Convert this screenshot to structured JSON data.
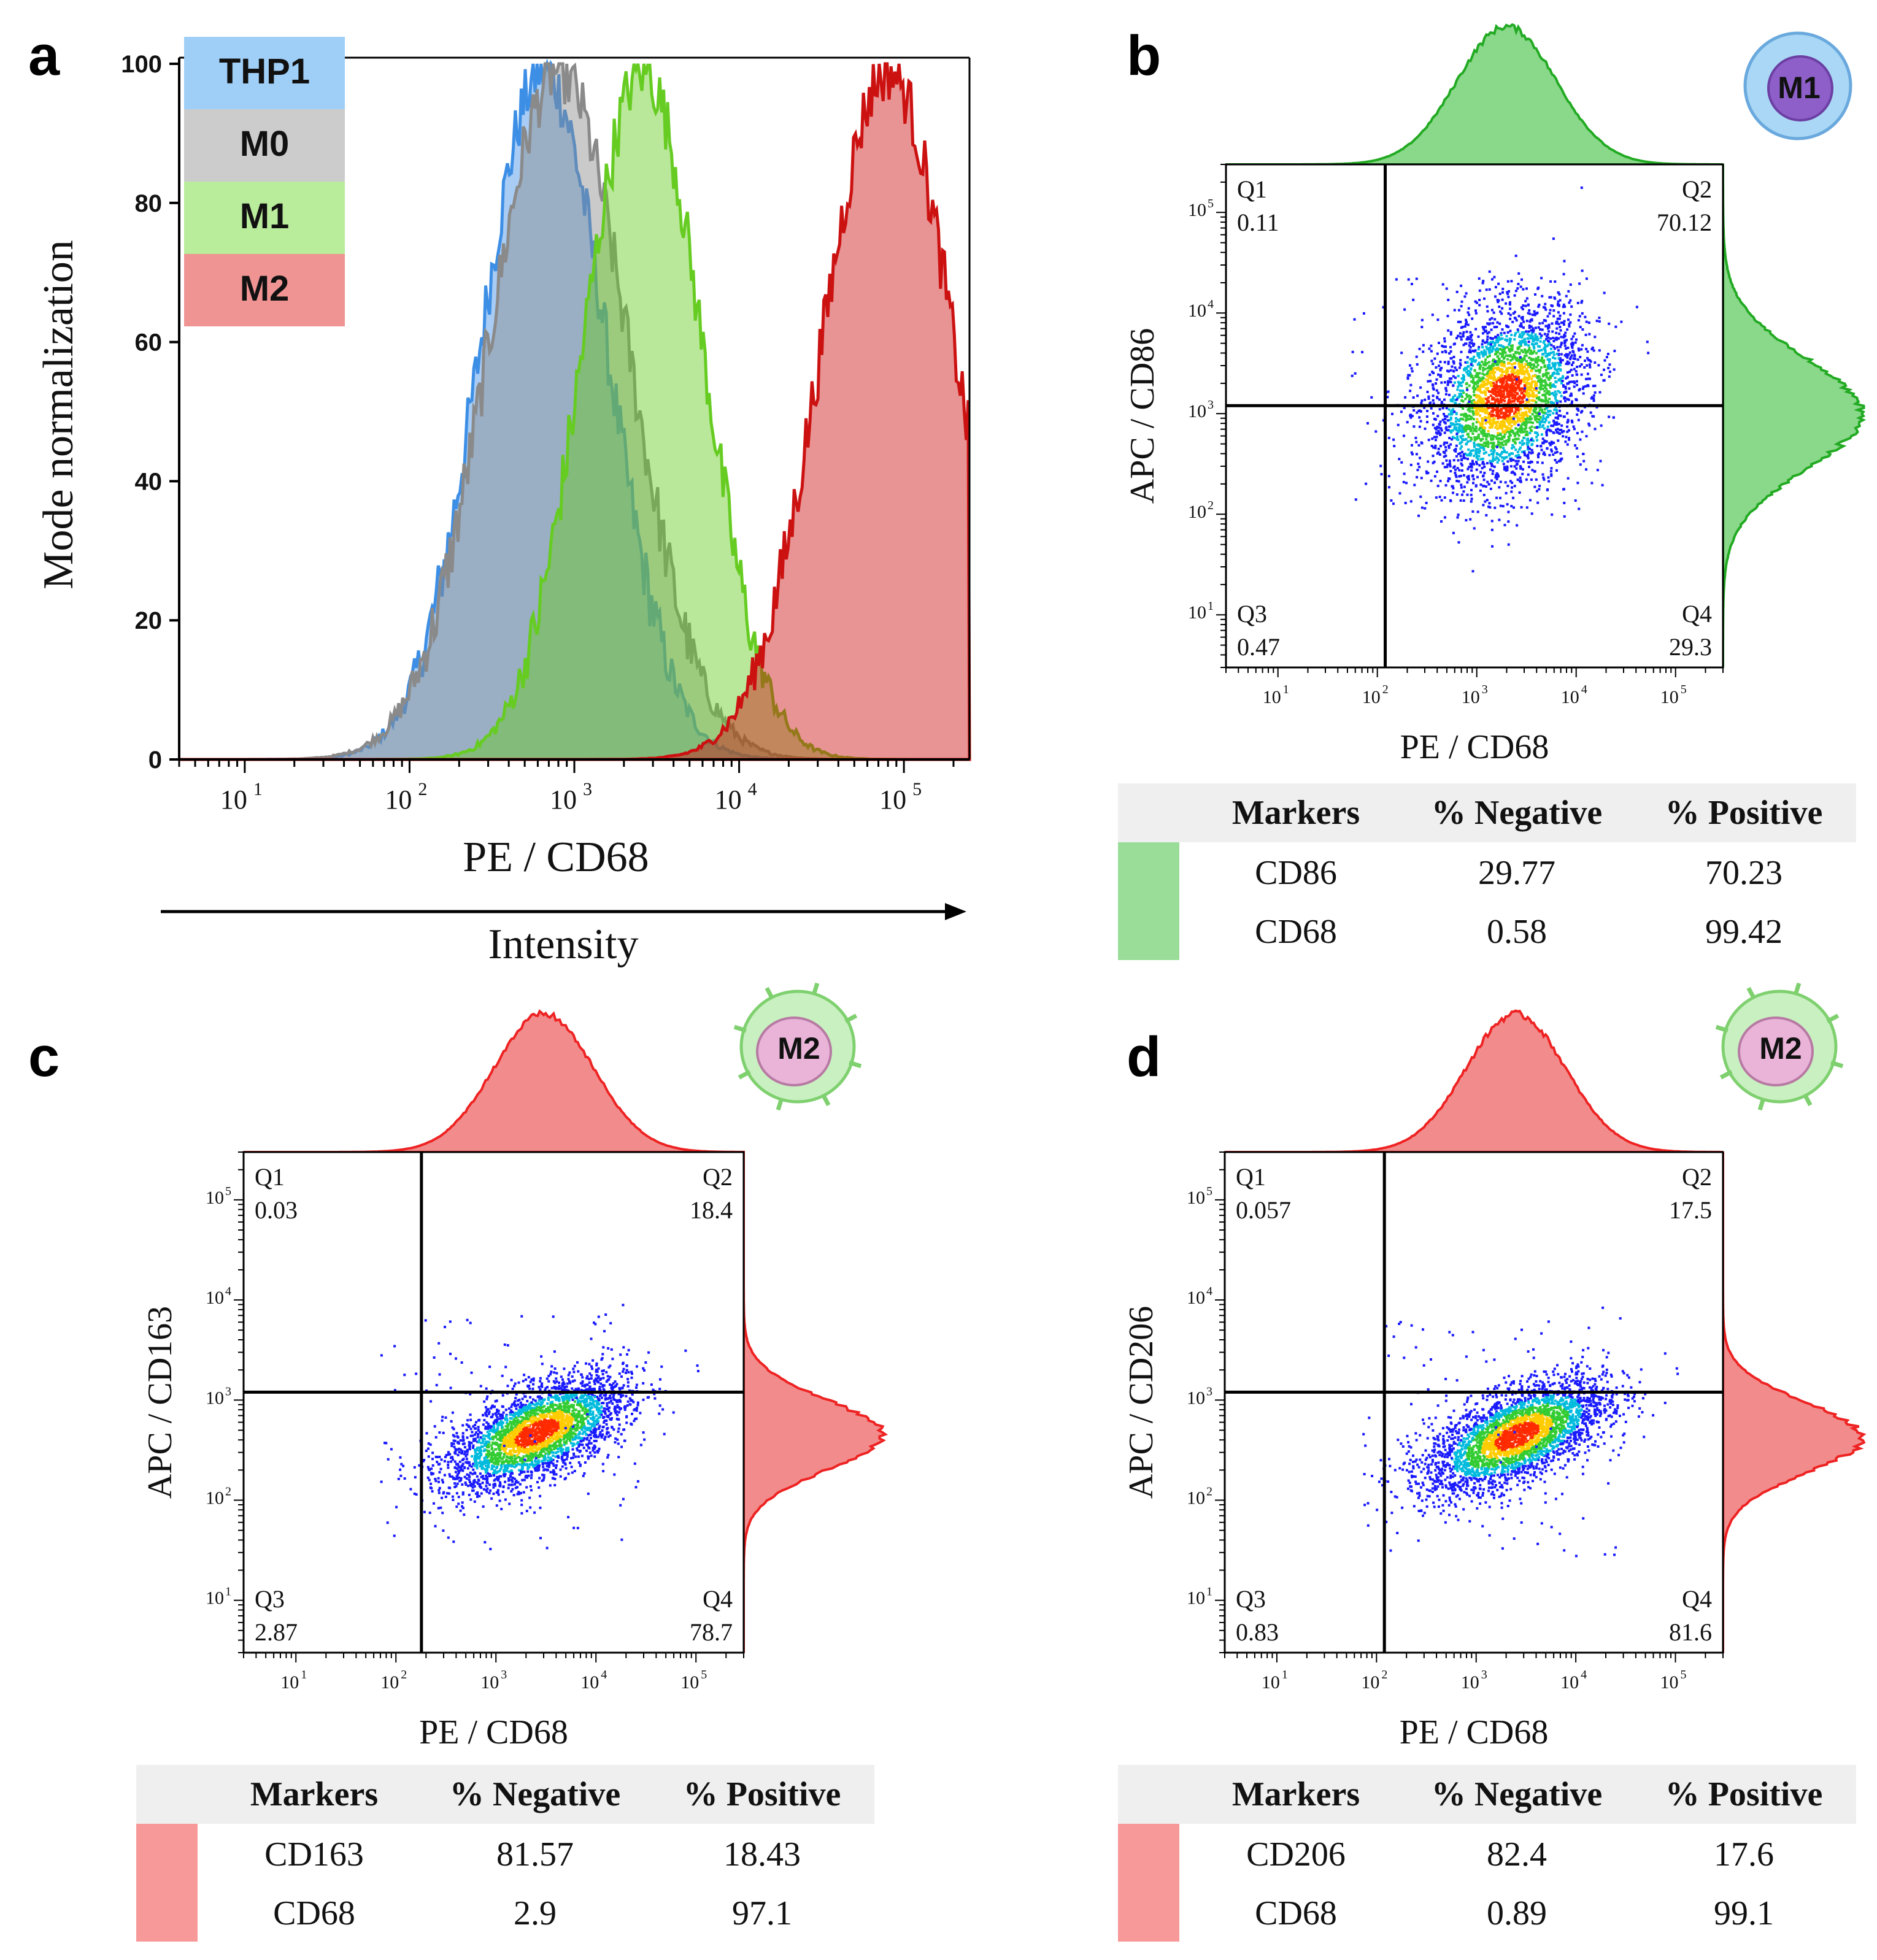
{
  "colors": {
    "THP1": "#3d8fe6",
    "M0": "#8a8a8a",
    "M1": "#66cc22",
    "M2": "#cc1111",
    "m1_marginal": "#22aa22",
    "m2_marginal": "#ee2222",
    "green_swatch": "#99dd99",
    "red_swatch": "#f89999"
  },
  "chart_data": [
    {
      "panel": "a",
      "type": "area",
      "xlabel": "PE / CD68",
      "ylabel": "Mode normalization",
      "arrow_label": "Intensity",
      "xscale": "log",
      "xlim": [
        4,
        250000
      ],
      "ylim": [
        0,
        100
      ],
      "x_ticks": [
        "10",
        "10",
        "10",
        "10",
        "10"
      ],
      "x_tick_exponents": [
        "1",
        "2",
        "3",
        "4",
        "5"
      ],
      "y_ticks": [
        "0",
        "20",
        "40",
        "60",
        "80",
        "100"
      ],
      "legend_position": "top-left",
      "series": [
        {
          "name": "THP1",
          "color_key": "THP1",
          "peak_x": 650,
          "sigma_log10": 0.38,
          "peak_y": 99
        },
        {
          "name": "M0",
          "color_key": "M0",
          "peak_x": 800,
          "sigma_log10": 0.42,
          "peak_y": 99
        },
        {
          "name": "M1",
          "color_key": "M1",
          "peak_x": 2600,
          "sigma_log10": 0.36,
          "peak_y": 99
        },
        {
          "name": "M2",
          "color_key": "M2",
          "peak_x": 80000,
          "sigma_log10": 0.4,
          "peak_y": 99
        }
      ]
    },
    {
      "panel": "b",
      "type": "scatter",
      "cell_label": "M1",
      "theme": "M1",
      "xlabel": "PE / CD68",
      "ylabel": "APC / CD86",
      "xscale": "log",
      "yscale": "log",
      "xlim": [
        3,
        300000
      ],
      "ylim": [
        3,
        300000
      ],
      "x_tick_exponents": [
        "1",
        "2",
        "3",
        "4",
        "5"
      ],
      "y_tick_exponents": [
        "1",
        "2",
        "3",
        "4",
        "5"
      ],
      "gate_x": 120,
      "gate_y": 1200,
      "quadrants": {
        "Q1": "0.11",
        "Q2": "70.12",
        "Q3": "0.47",
        "Q4": "29.3"
      },
      "cloud": {
        "center_x": 1900,
        "center_y": 1500,
        "spread_x": 0.4,
        "spread_y": 0.45,
        "corr": 0.25,
        "n": 3200
      },
      "marginal_x_peak": 2000,
      "marginal_y_peak": 1000,
      "table": {
        "headers": [
          "Markers",
          "% Negative",
          "% Positive"
        ],
        "rows": [
          {
            "marker": "CD86",
            "negative": "29.77",
            "positive": "70.23"
          },
          {
            "marker": "CD68",
            "negative": "0.58",
            "positive": "99.42"
          }
        ]
      }
    },
    {
      "panel": "c",
      "type": "scatter",
      "cell_label": "M2",
      "theme": "M2",
      "xlabel": "PE / CD68",
      "ylabel": "APC / CD163",
      "xscale": "log",
      "yscale": "log",
      "xlim": [
        3,
        300000
      ],
      "ylim": [
        3,
        300000
      ],
      "x_tick_exponents": [
        "1",
        "2",
        "3",
        "4",
        "5"
      ],
      "y_tick_exponents": [
        "1",
        "2",
        "3",
        "4",
        "5"
      ],
      "gate_x": 180,
      "gate_y": 1200,
      "quadrants": {
        "Q1": "0.03",
        "Q2": "18.4",
        "Q3": "2.87",
        "Q4": "78.7"
      },
      "cloud": {
        "center_x": 2500,
        "center_y": 480,
        "spread_x": 0.45,
        "spread_y": 0.28,
        "corr": 0.6,
        "n": 3200
      },
      "marginal_x_peak": 3000,
      "marginal_y_peak": 450,
      "table": {
        "headers": [
          "Markers",
          "% Negative",
          "% Positive"
        ],
        "rows": [
          {
            "marker": "CD163",
            "negative": "81.57",
            "positive": "18.43"
          },
          {
            "marker": "CD68",
            "negative": "2.9",
            "positive": "97.1"
          }
        ]
      }
    },
    {
      "panel": "d",
      "type": "scatter",
      "cell_label": "M2",
      "theme": "M2",
      "xlabel": "PE / CD68",
      "ylabel": "APC / CD206",
      "xscale": "log",
      "yscale": "log",
      "xlim": [
        3,
        300000
      ],
      "ylim": [
        3,
        300000
      ],
      "x_tick_exponents": [
        "1",
        "2",
        "3",
        "4",
        "5"
      ],
      "y_tick_exponents": [
        "1",
        "2",
        "3",
        "4",
        "5"
      ],
      "gate_x": 120,
      "gate_y": 1200,
      "quadrants": {
        "Q1": "0.057",
        "Q2": "17.5",
        "Q3": "0.83",
        "Q4": "81.6"
      },
      "cloud": {
        "center_x": 2500,
        "center_y": 450,
        "spread_x": 0.45,
        "spread_y": 0.28,
        "corr": 0.6,
        "n": 3200
      },
      "marginal_x_peak": 2500,
      "marginal_y_peak": 420,
      "table": {
        "headers": [
          "Markers",
          "% Negative",
          "% Positive"
        ],
        "rows": [
          {
            "marker": "CD206",
            "negative": "82.4",
            "positive": "17.6"
          },
          {
            "marker": "CD68",
            "negative": "0.89",
            "positive": "99.1"
          }
        ]
      }
    }
  ]
}
